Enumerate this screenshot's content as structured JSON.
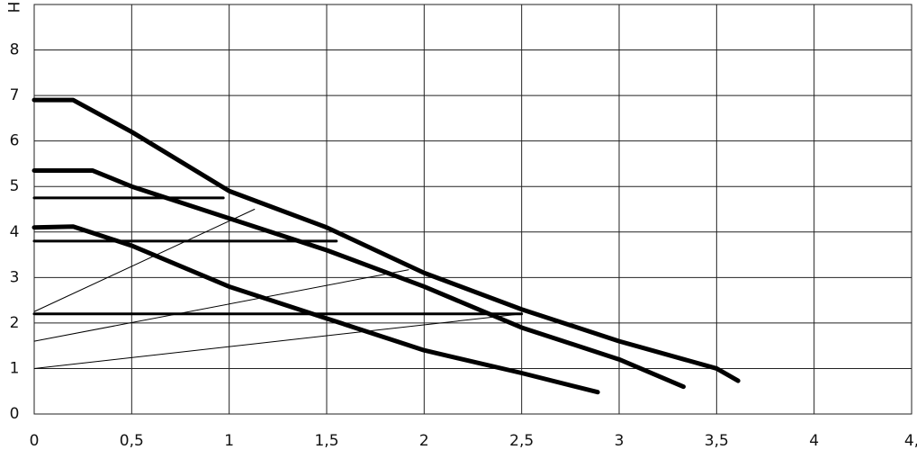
{
  "chart_data": {
    "type": "line",
    "y_label": "H",
    "xlim": [
      0,
      4.5
    ],
    "ylim": [
      0,
      9
    ],
    "xticks": [
      0,
      {
        "value": 0.5,
        "label": "0,5"
      },
      1,
      {
        "value": 1.5,
        "label": "1,5"
      },
      2,
      {
        "value": 2.5,
        "label": "2,5"
      },
      3,
      {
        "value": 3.5,
        "label": "3,5"
      },
      4,
      {
        "value": 4.5,
        "label": "4,"
      }
    ],
    "yticks": [
      0,
      1,
      2,
      3,
      4,
      5,
      6,
      7,
      8
    ],
    "grid": true,
    "series": [
      {
        "color": "#000000",
        "linewidth": 5,
        "x": [
          0,
          0.2,
          0.5,
          1,
          1.5,
          2,
          2.5,
          3,
          3.5,
          3.61
        ],
        "values": [
          6.9,
          6.9,
          6.2,
          4.9,
          4.1,
          3.1,
          2.3,
          1.6,
          1.0,
          0.73
        ]
      },
      {
        "color": "#000000",
        "linewidth": 5,
        "x": [
          0,
          0.3,
          0.5,
          1,
          1.5,
          2,
          2.5,
          3,
          3.33
        ],
        "values": [
          5.35,
          5.35,
          5.0,
          4.3,
          3.6,
          2.8,
          1.9,
          1.2,
          0.6
        ]
      },
      {
        "color": "#000000",
        "linewidth": 5,
        "x": [
          0,
          0.2,
          0.5,
          1,
          1.5,
          2,
          2.5,
          2.89
        ],
        "values": [
          4.1,
          4.12,
          3.7,
          2.8,
          2.1,
          1.4,
          0.9,
          0.48
        ]
      },
      {
        "color": "#000000",
        "linewidth": 3,
        "x": [
          0,
          0.97
        ],
        "values": [
          4.75,
          4.75
        ]
      },
      {
        "color": "#000000",
        "linewidth": 3,
        "x": [
          0,
          1.55
        ],
        "values": [
          3.8,
          3.8
        ]
      },
      {
        "color": "#000000",
        "linewidth": 3,
        "x": [
          0,
          2.5
        ],
        "values": [
          2.2,
          2.2
        ]
      },
      {
        "color": "#000000",
        "linewidth": 1,
        "x": [
          0,
          1.13
        ],
        "values": [
          2.25,
          4.5
        ]
      },
      {
        "color": "#000000",
        "linewidth": 1,
        "x": [
          0,
          1.92
        ],
        "values": [
          1.6,
          3.17
        ]
      },
      {
        "color": "#000000",
        "linewidth": 1,
        "x": [
          0,
          2.5
        ],
        "values": [
          1.0,
          2.2
        ]
      }
    ]
  }
}
